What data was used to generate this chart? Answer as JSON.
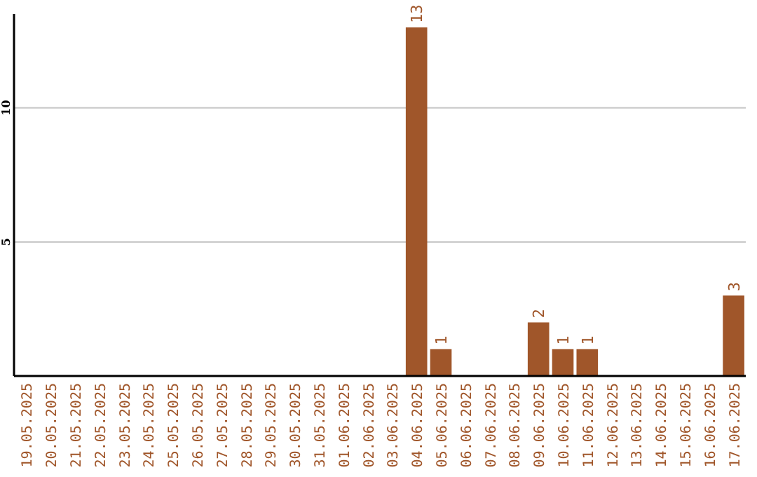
{
  "chart_data": {
    "type": "bar",
    "categories": [
      "19.05.2025",
      "20.05.2025",
      "21.05.2025",
      "22.05.2025",
      "23.05.2025",
      "24.05.2025",
      "25.05.2025",
      "26.05.2025",
      "27.05.2025",
      "28.05.2025",
      "29.05.2025",
      "30.05.2025",
      "31.05.2025",
      "01.06.2025",
      "02.06.2025",
      "03.06.2025",
      "04.06.2025",
      "05.06.2025",
      "06.06.2025",
      "07.06.2025",
      "08.06.2025",
      "09.06.2025",
      "10.06.2025",
      "11.06.2025",
      "12.06.2025",
      "13.06.2025",
      "14.06.2025",
      "15.06.2025",
      "16.06.2025",
      "17.06.2025"
    ],
    "values": [
      0,
      0,
      0,
      0,
      0,
      0,
      0,
      0,
      0,
      0,
      0,
      0,
      0,
      0,
      0,
      0,
      13,
      1,
      0,
      0,
      0,
      2,
      1,
      1,
      0,
      0,
      0,
      0,
      0,
      3
    ],
    "value_labels": [
      null,
      null,
      null,
      null,
      null,
      null,
      null,
      null,
      null,
      null,
      null,
      null,
      null,
      null,
      null,
      null,
      "13",
      "1",
      null,
      null,
      null,
      "2",
      "1",
      "1",
      null,
      null,
      null,
      null,
      null,
      "3"
    ],
    "color": "#a0562a",
    "ylim": [
      0,
      13.5
    ],
    "yticks": [
      5,
      10
    ],
    "grid": "y"
  }
}
